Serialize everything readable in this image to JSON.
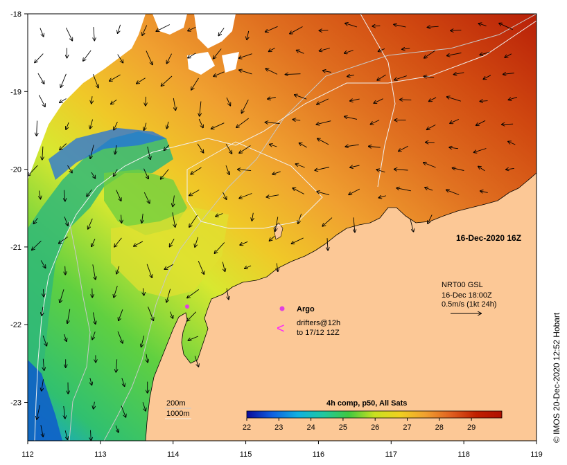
{
  "map": {
    "date_label": "16-Dec-2020 16Z",
    "x_ticks": [
      "112",
      "113",
      "114",
      "115",
      "116",
      "117",
      "118",
      "119"
    ],
    "y_ticks": [
      "-18",
      "-19",
      "-20",
      "-21",
      "-22",
      "-23"
    ],
    "land_color": "#fcc896",
    "cloud_color": "#ffffff"
  },
  "current_legend": {
    "line1": "NRT00 GSL",
    "line2": "16-Dec 18:00Z",
    "line3": "0.5m/s (1kt 24h)"
  },
  "argo_legend": {
    "label": "Argo",
    "color": "#e040e0"
  },
  "drifter_legend": {
    "symbol": "<",
    "line1": "drifters@12h",
    "line2": "to 17/12 12Z",
    "color": "#ff20ff"
  },
  "contour_legend": {
    "depth1": "200m",
    "depth2": "1000m"
  },
  "colorbar": {
    "title": "4h comp, p50, All Sats",
    "ticks": [
      "22",
      "23",
      "24",
      "25",
      "26",
      "27",
      "28",
      "29"
    ],
    "colors": [
      "#0a0a9a",
      "#1060e0",
      "#10b0e0",
      "#20c8a0",
      "#40c840",
      "#c8e020",
      "#f0d020",
      "#f0a030",
      "#e06020",
      "#c02000",
      "#b01000"
    ]
  },
  "credit": "© IMOS 20-Dec-2020 12:52 Hobart"
}
